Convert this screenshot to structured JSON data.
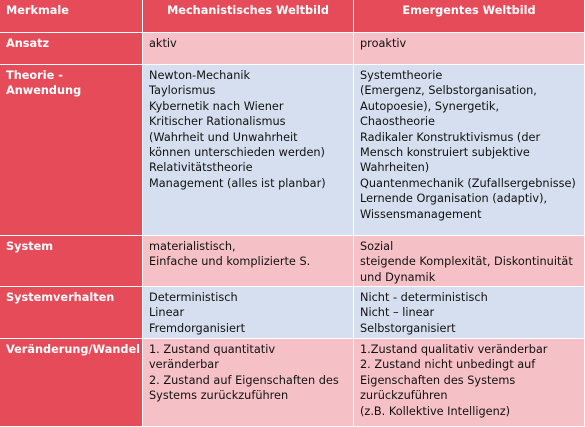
{
  "table": {
    "header": [
      "Merkmale",
      "Mechanistisches Weltbild",
      "Emergentes Weltbild"
    ],
    "rows": [
      {
        "label": [
          "Ansatz"
        ],
        "cells": [
          [
            "aktiv"
          ],
          [
            "proaktiv"
          ]
        ]
      },
      {
        "label": [
          "Theorie -",
          "Anwendung"
        ],
        "cells": [
          [
            "Newton-Mechanik",
            "Taylorismus",
            "Kybernetik nach Wiener",
            "Kritischer Rationalismus",
            "(Wahrheit und Unwahrheit",
            "können unterschieden werden)",
            "Relativitätstheorie",
            "Management (alles ist planbar)"
          ],
          [
            "Systemtheorie",
            "(Emergenz, Selbstorganisation,",
            "Autopoesie), Synergetik,",
            "Chaostheorie",
            "Radikaler Konstruktivismus (der",
            "Mensch konstruiert subjektive",
            "Wahrheiten)",
            "Quantenmechanik (Zufallsergebnisse)",
            "Lernende Organisation (adaptiv),",
            "Wissensmanagement"
          ]
        ]
      },
      {
        "label": [
          "System"
        ],
        "cells": [
          [
            "materialistisch,",
            "Einfache und komplizierte S."
          ],
          [
            "Sozial",
            "steigende Komplexität, Diskontinuität",
            "und Dynamik"
          ]
        ]
      },
      {
        "label": [
          "Systemverhalten"
        ],
        "cells": [
          [
            "Deterministisch",
            "Linear",
            "Fremdorganisiert"
          ],
          [
            "Nicht - deterministisch",
            "Nicht – linear",
            "Selbstorganisiert"
          ]
        ]
      },
      {
        "label": [
          "Veränderung/Wandel"
        ],
        "cells": [
          [
            "1. Zustand quantitativ",
            "veränderbar",
            "2. Zustand auf Eigenschaften des",
            "Systems zurückzuführen"
          ],
          [
            "1.Zustand qualitativ veränderbar",
            "2. Zustand nicht unbedingt auf",
            "Eigenschaften des Systems",
            "zurückzuführen",
            "(z.B. Kollektive Intelligenz)"
          ]
        ]
      }
    ]
  }
}
